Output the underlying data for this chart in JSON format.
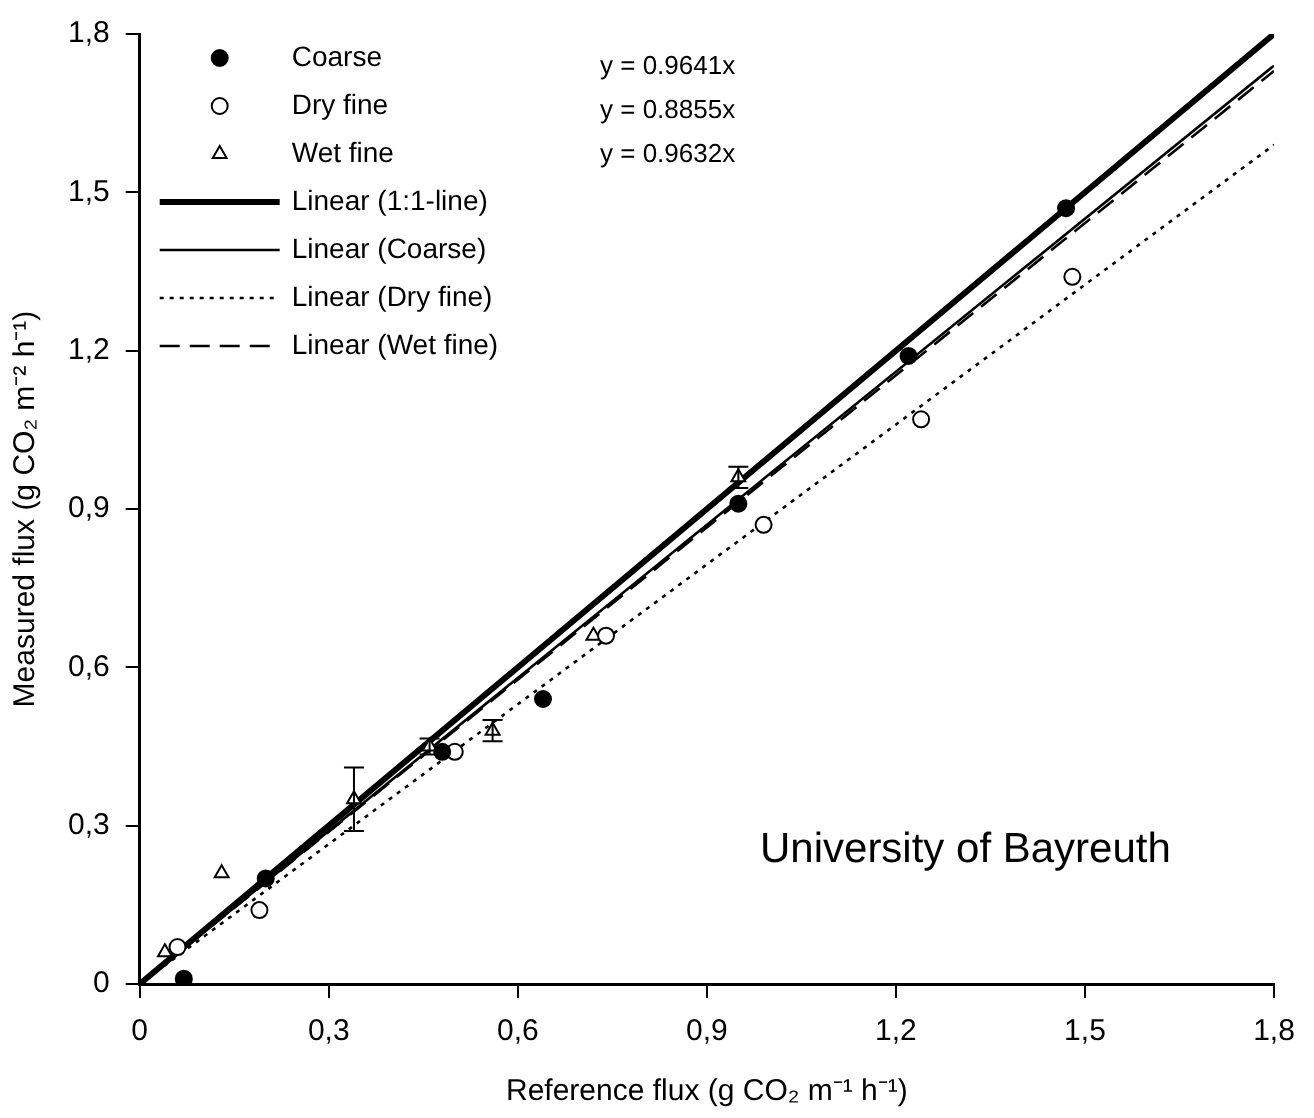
{
  "chart_data": {
    "type": "scatter",
    "xlabel": "Reference flux (g CO₂ m⁻¹ h⁻¹)",
    "ylabel": "Measured flux (g CO₂ m⁻² h⁻¹)",
    "xlim": [
      0,
      1.8
    ],
    "ylim": [
      0,
      1.8
    ],
    "xticks": [
      0,
      {
        "value": 0.3,
        "label": "0,3"
      },
      {
        "value": 0.6,
        "label": "0,6"
      },
      {
        "value": 0.9,
        "label": "0,9"
      },
      {
        "value": 1.2,
        "label": "1,2"
      },
      {
        "value": 1.5,
        "label": "1,5"
      },
      {
        "value": 1.8,
        "label": "1,8"
      }
    ],
    "yticks": [
      0,
      {
        "value": 0.3,
        "label": "0,3"
      },
      {
        "value": 0.6,
        "label": "0,6"
      },
      {
        "value": 0.9,
        "label": "0,9"
      },
      {
        "value": 1.2,
        "label": "1,2"
      },
      {
        "value": 1.5,
        "label": "1,5"
      },
      {
        "value": 1.8,
        "label": "1,8"
      }
    ],
    "grid": false,
    "legend": "top left",
    "annotations": [
      "y = 0.9641x",
      "y = 0.8855x",
      "y = 0.9632x",
      "University of Bayreuth"
    ],
    "series": [
      {
        "name": "Coarse",
        "marker": "circle",
        "color": "#000000",
        "x": [
          0.07,
          0.2,
          0.48,
          0.64,
          0.95,
          1.22,
          1.47
        ],
        "values": [
          0.01,
          0.2,
          0.44,
          0.54,
          0.91,
          1.19,
          1.47
        ]
      },
      {
        "name": "Dry fine",
        "marker": "circle",
        "color": "#000000",
        "x": [
          0.06,
          0.19,
          0.5,
          0.74,
          0.99,
          1.24,
          1.48
        ],
        "values": [
          0.07,
          0.14,
          0.44,
          0.66,
          0.87,
          1.07,
          1.34
        ]
      },
      {
        "name": "Wet fine",
        "marker": "triangle",
        "color": "#000000",
        "x": [
          0.04,
          0.13,
          0.34,
          0.46,
          0.56,
          0.72,
          0.95
        ],
        "values": [
          0.06,
          0.21,
          0.35,
          0.45,
          0.48,
          0.66,
          0.96
        ],
        "errors": [
          null,
          null,
          0.06,
          0.015,
          0.02,
          null,
          0.02
        ]
      },
      {
        "name": "Linear (1:1-line)",
        "type": "line",
        "line_style": "solid",
        "marker": "none",
        "color": "#000000",
        "x": [
          0,
          1.8
        ],
        "values": [
          0,
          1.8
        ]
      },
      {
        "name": "Linear (Coarse)",
        "type": "line",
        "line_style": "solid",
        "marker": "none",
        "color": "#000000",
        "x": [
          0,
          1.8
        ],
        "values": [
          0,
          1.74
        ]
      },
      {
        "name": "Linear (Dry fine)",
        "type": "line",
        "line_style": "dotted",
        "marker": "none",
        "color": "#000000",
        "x": [
          0,
          1.8
        ],
        "values": [
          0,
          1.59
        ]
      },
      {
        "name": "Linear (Wet fine)",
        "type": "line",
        "line_style": "dashed",
        "marker": "none",
        "color": "#000000",
        "x": [
          0,
          1.8
        ],
        "values": [
          0,
          1.73
        ]
      }
    ]
  }
}
